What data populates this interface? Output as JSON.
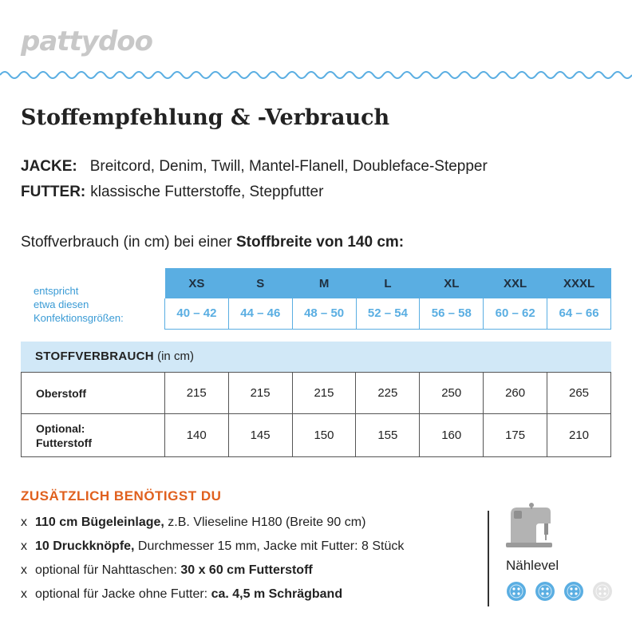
{
  "brand": {
    "logo": "pattydoo"
  },
  "title": "Stoffempfehlung & -Verbrauch",
  "fabrics": [
    {
      "label": "JACKE:",
      "value": "Breitcord, Denim, Twill, Mantel-Flanell, Doubleface-Stepper"
    },
    {
      "label": "FUTTER:",
      "value": "klassische Futterstoffe, Steppfutter"
    }
  ],
  "usage_intro": {
    "prefix": "Stoffverbrauch (in cm) bei einer",
    "bold": "Stoffbreite von 140 cm:"
  },
  "size_note": [
    "entspricht",
    "etwa diesen",
    "Konfektionsgrößen:"
  ],
  "sizes": [
    "XS",
    "S",
    "M",
    "L",
    "XL",
    "XXL",
    "XXXL"
  ],
  "eu_sizes": [
    "40 – 42",
    "44 – 46",
    "48 – 50",
    "52 – 54",
    "56 – 58",
    "60 – 62",
    "64 – 66"
  ],
  "consumption": {
    "header": "STOFFVERBRAUCH",
    "header_unit": "(in cm)",
    "rows": [
      {
        "label": "Oberstoff",
        "values": [
          "215",
          "215",
          "215",
          "225",
          "250",
          "260",
          "265"
        ]
      },
      {
        "label_line1": "Optional:",
        "label_line2": "Futterstoff",
        "values": [
          "140",
          "145",
          "150",
          "155",
          "160",
          "175",
          "210"
        ]
      }
    ]
  },
  "extras": {
    "title": "ZUSÄTZLICH BENÖTIGST DU",
    "bullet": "x",
    "items": [
      {
        "bold": "110 cm Bügeleinlage,",
        "text": " z.B. Vlieseline H180 (Breite 90 cm)"
      },
      {
        "bold": "10 Druckknöpfe,",
        "text": " Durchmesser 15 mm, Jacke mit Futter: 8 Stück"
      },
      {
        "text": "optional für Nahttaschen: ",
        "bold": "30 x 60 cm Futterstoff"
      },
      {
        "text": "optional für Jacke ohne Futter: ",
        "bold": "ca. 4,5 m Schrägband"
      }
    ]
  },
  "level": {
    "label": "Nählevel",
    "value": 3,
    "max": 4,
    "icon": "sewing-machine-icon",
    "active_color": "#5aaee2",
    "inactive_color": "#e3e3e3"
  }
}
